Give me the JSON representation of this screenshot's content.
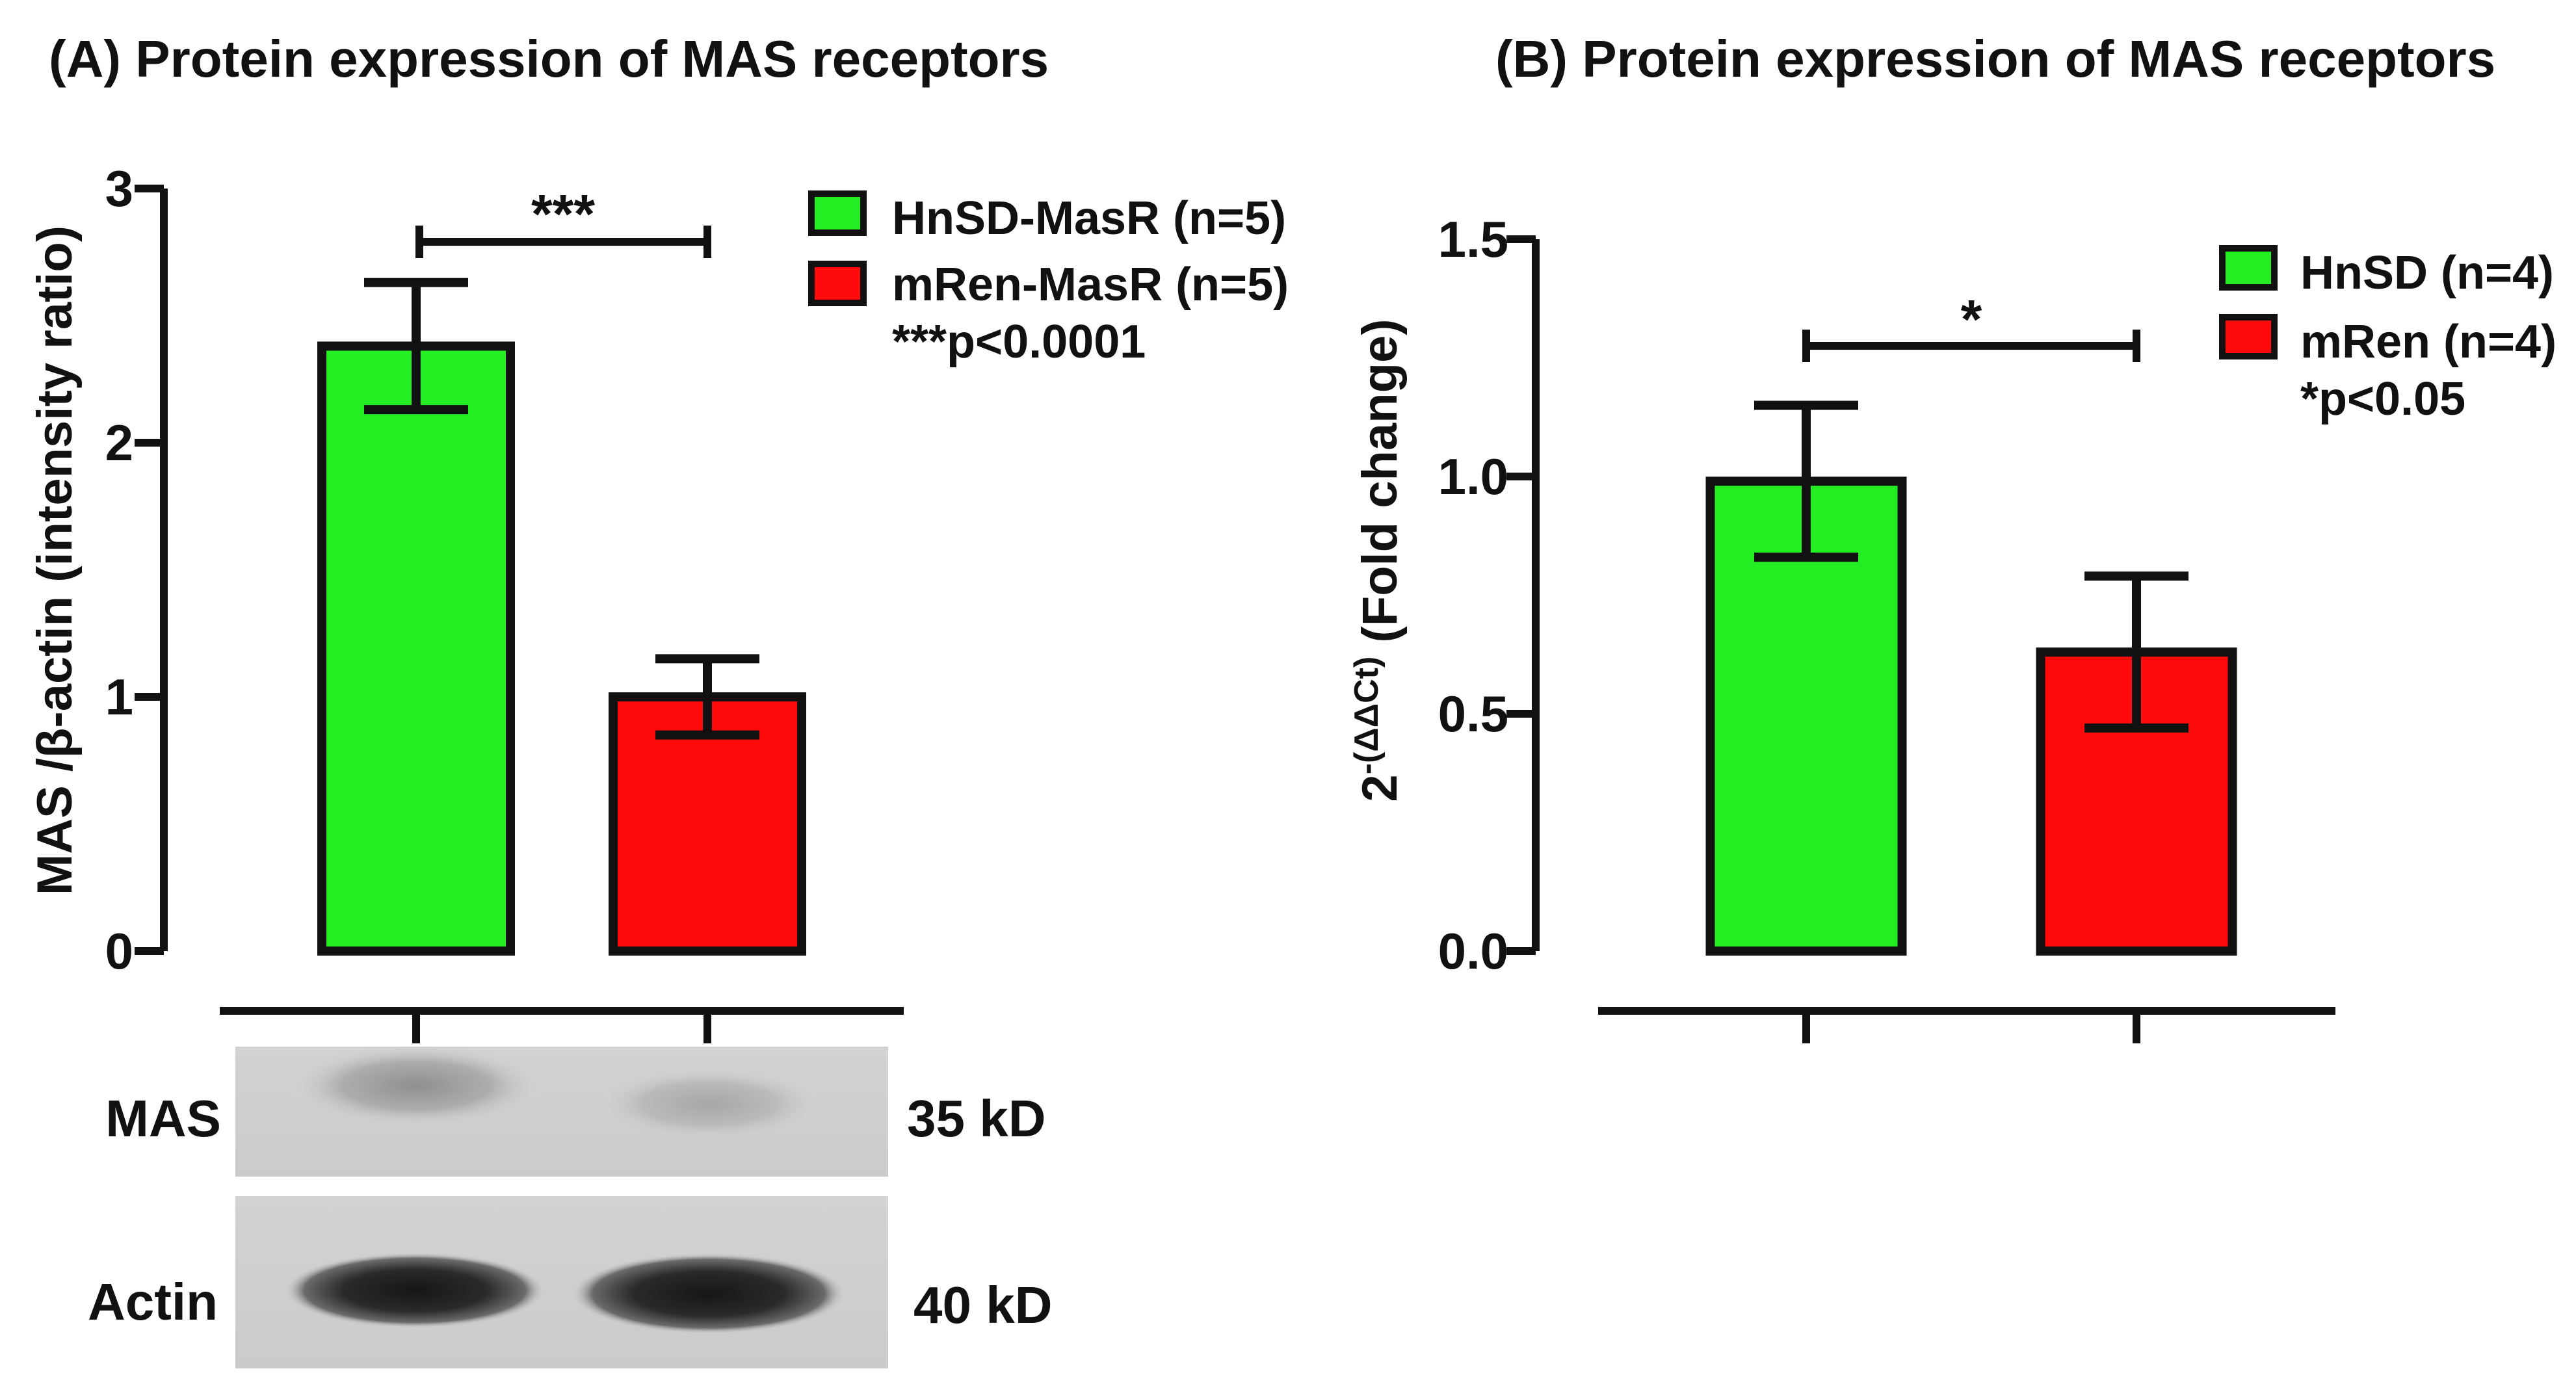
{
  "chart_data": [
    {
      "type": "bar",
      "panel": "A",
      "title": "(A) Protein expression of MAS receptors",
      "xlabel": "",
      "ylabel": "MAS /β-actin (intensity ratio)",
      "ylim": [
        0,
        3
      ],
      "ticks": [
        "0",
        "1",
        "2",
        "3"
      ],
      "tick_values": [
        0,
        1,
        2,
        3
      ],
      "categories": [
        "HnSD-MasR (n=5)",
        "mRen-MasR (n=5)"
      ],
      "values": [
        2.38,
        1.0
      ],
      "errors": [
        0.25,
        0.15
      ],
      "colors": [
        "#22ee22",
        "#ff0a0a"
      ],
      "significance": {
        "stars": "***",
        "pvalue": "***p<0.0001"
      },
      "legend": [
        {
          "label": "HnSD-MasR (n=5)",
          "color": "#22ee22"
        },
        {
          "label": "mRen-MasR (n=5)",
          "color": "#ff0a0a"
        }
      ],
      "blot": {
        "rows": [
          {
            "label": "MAS",
            "size": "35 kD"
          },
          {
            "label": "Actin",
            "size": "40 kD"
          }
        ]
      }
    },
    {
      "type": "bar",
      "panel": "B",
      "title": "(B) Protein expression of MAS receptors",
      "xlabel": "",
      "ylabel_base": "2",
      "ylabel_exp": "-(ΔΔCt)",
      "ylabel_rest": " (Fold change)",
      "ylim": [
        0,
        1.5
      ],
      "ticks": [
        "0.0",
        "0.5",
        "1.0",
        "1.5"
      ],
      "tick_values": [
        0,
        0.5,
        1.0,
        1.5
      ],
      "categories": [
        "HnSD (n=4)",
        "mRen (n=4)"
      ],
      "values": [
        0.99,
        0.63
      ],
      "errors": [
        0.16,
        0.16
      ],
      "colors": [
        "#22ee22",
        "#ff0a0a"
      ],
      "significance": {
        "stars": "*",
        "pvalue": "*p<0.05"
      },
      "legend": [
        {
          "label": "HnSD (n=4)",
          "color": "#22ee22"
        },
        {
          "label": "mRen (n=4)",
          "color": "#ff0a0a"
        }
      ]
    }
  ]
}
